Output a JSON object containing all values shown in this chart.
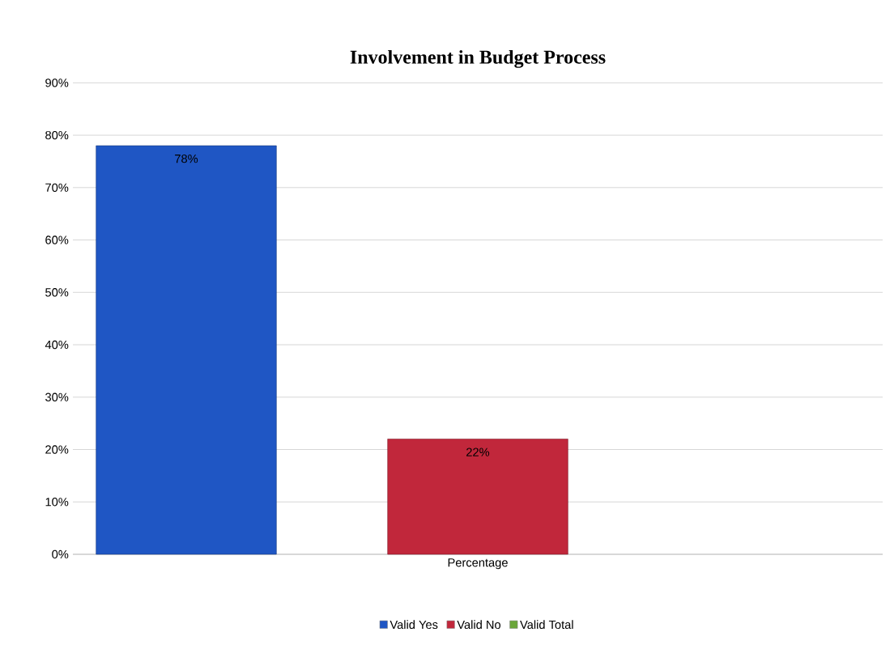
{
  "chart_data": {
    "type": "bar",
    "title": "Involvement in Budget Process",
    "categories": [
      "Percentage"
    ],
    "series": [
      {
        "name": "Valid Yes",
        "color": "#1f56c4",
        "values": [
          78
        ],
        "value_labels": [
          "78%"
        ]
      },
      {
        "name": "Valid No",
        "color": "#c1273b",
        "values": [
          22
        ],
        "value_labels": [
          "22%"
        ]
      },
      {
        "name": "Valid Total",
        "color": "#6aa63a",
        "values": [
          null
        ]
      }
    ],
    "ylim": [
      0,
      90
    ],
    "yticks": [
      {
        "value": 0,
        "label": "0%"
      },
      {
        "value": 10,
        "label": "10%"
      },
      {
        "value": 20,
        "label": "20%"
      },
      {
        "value": 30,
        "label": "30%"
      },
      {
        "value": 40,
        "label": "40%"
      },
      {
        "value": 50,
        "label": "50%"
      },
      {
        "value": 60,
        "label": "60%"
      },
      {
        "value": 70,
        "label": "70%"
      },
      {
        "value": 80,
        "label": "80%"
      },
      {
        "value": 90,
        "label": "90%"
      }
    ],
    "grid": "y",
    "legend": "bottom"
  }
}
